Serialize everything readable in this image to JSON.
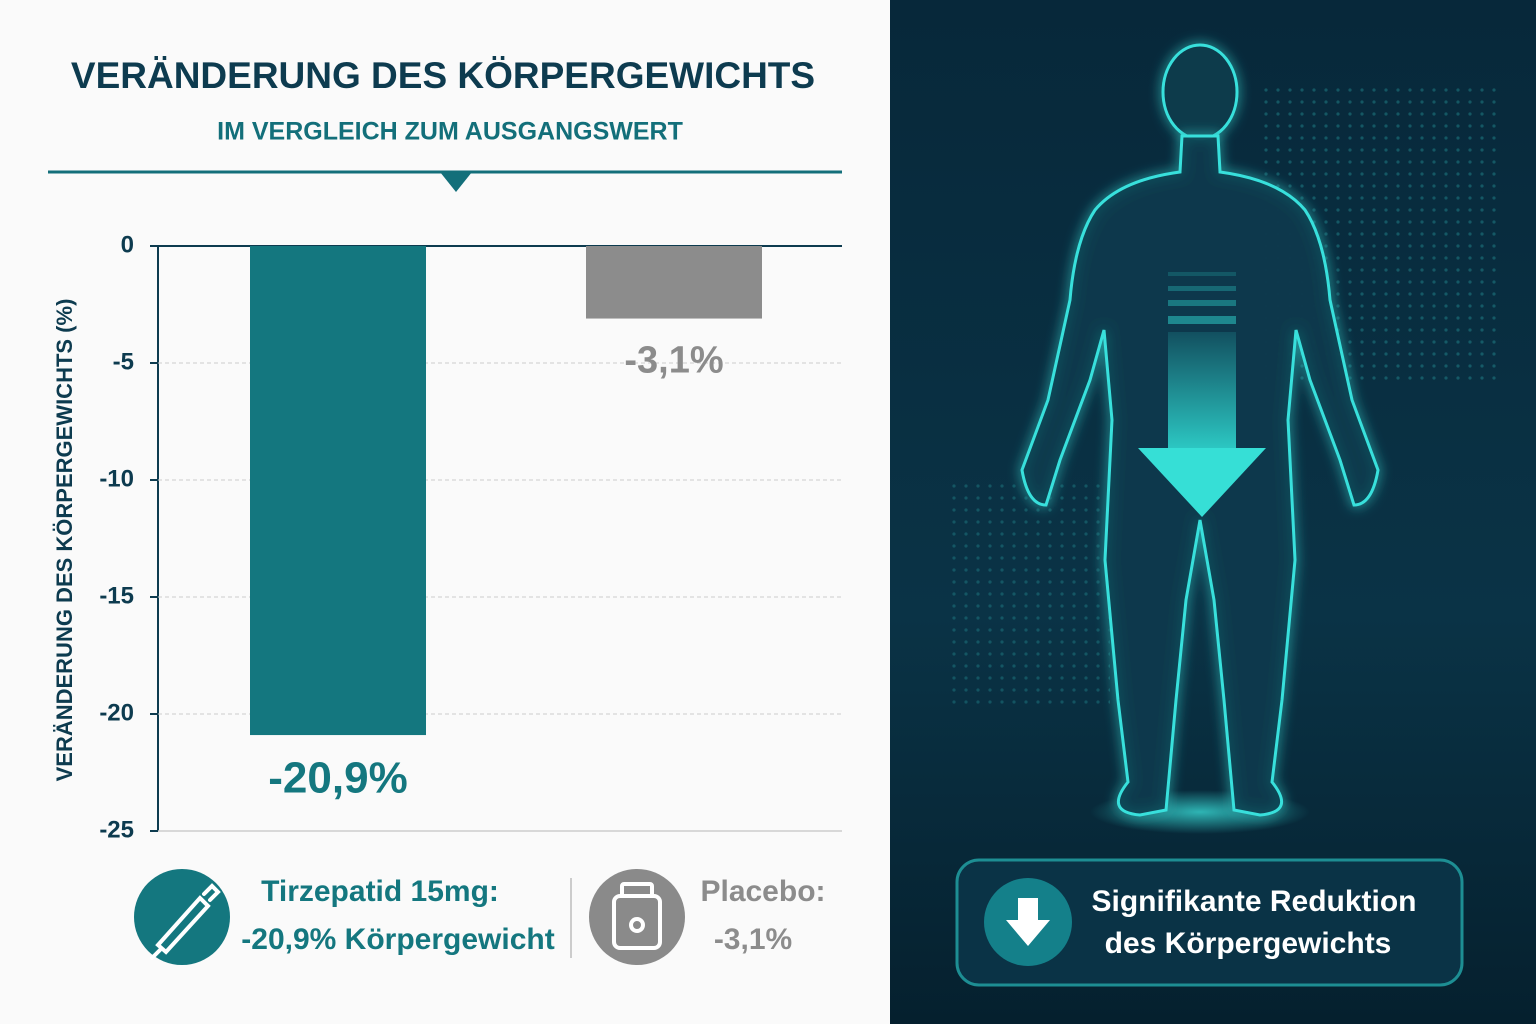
{
  "chart_data": {
    "type": "bar",
    "title": "VERÄNDERUNG DES KÖRPERGEWICHTS",
    "subtitle": "IM VERGLEICH ZUM AUSGANGSWERT",
    "y_label": "VERÄNDERUNG DES KÖRPERGEWICHTS (%)",
    "categories": [
      null,
      null
    ],
    "values": [
      -20.9,
      -3.1
    ],
    "value_labels": [
      "-20,9%",
      "-3,1%"
    ],
    "colors": [
      "#14777f",
      "#8c8c8c"
    ],
    "ylim": [
      -25,
      0
    ],
    "yticks": [
      0,
      -5,
      -10,
      -15,
      -20,
      -25
    ],
    "grid": true,
    "legend": [
      {
        "name": "Tirzepatid 15mg:",
        "detail": "-20,9% Körpergewicht"
      },
      {
        "name": "Placebo:",
        "detail": "-3,1%"
      }
    ]
  },
  "panel": {
    "callout": [
      "Signifikante Reduktion",
      "des Körpergewichts"
    ]
  }
}
